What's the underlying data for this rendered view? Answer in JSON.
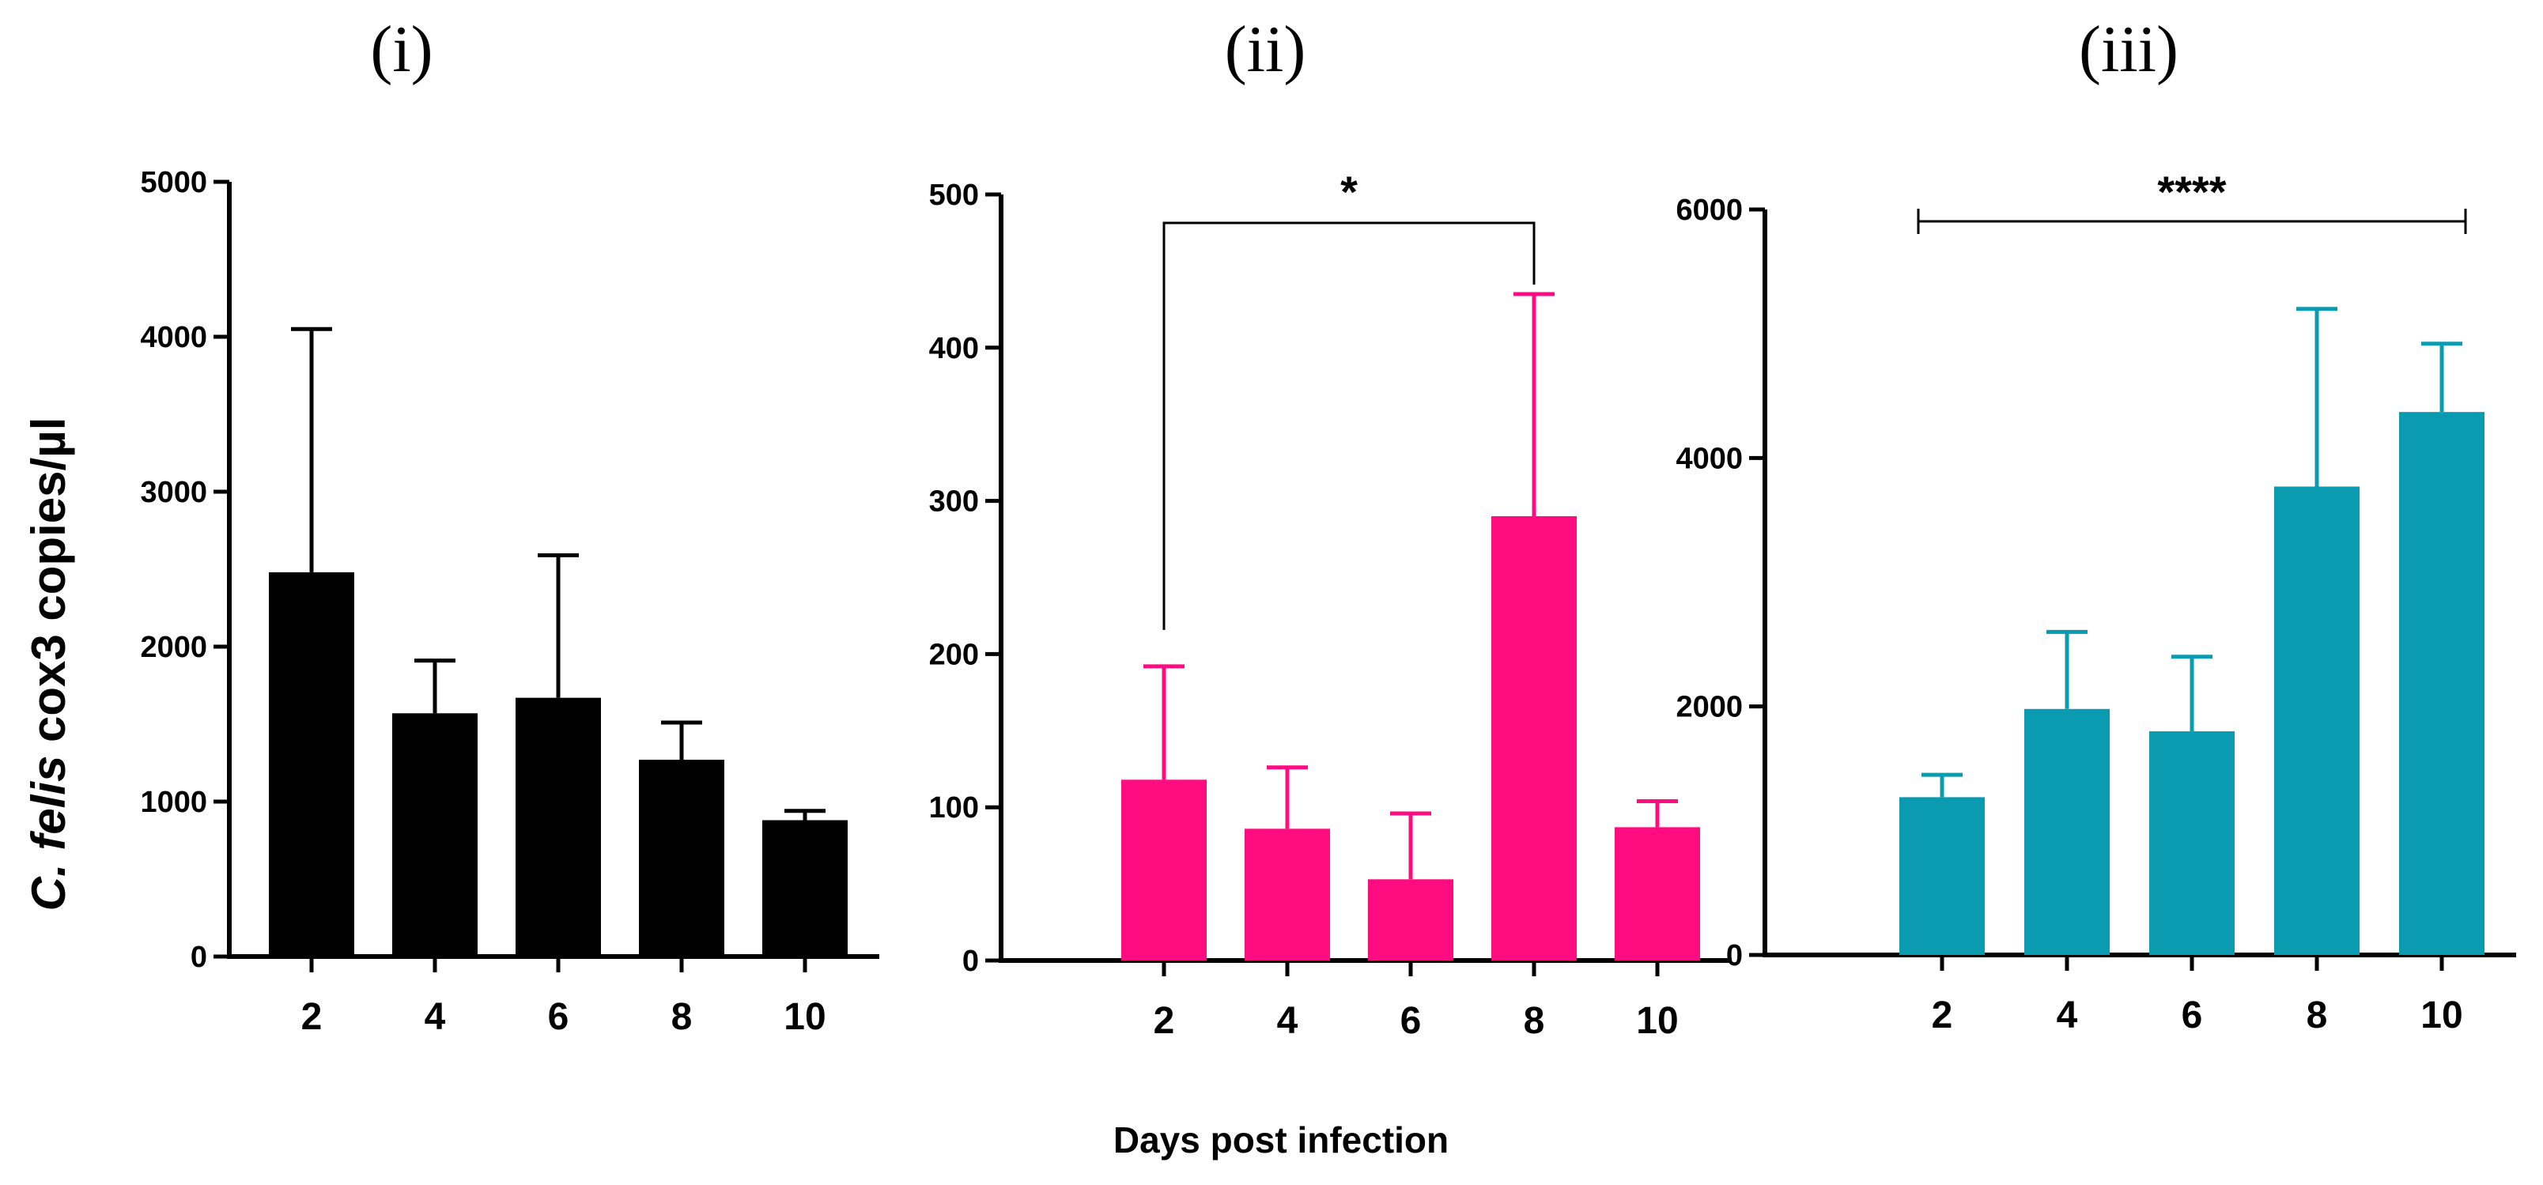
{
  "xlabel": "Days post infection",
  "ylabel": {
    "species_genus": "C.",
    "species_name": "felis",
    "rest": "cox3 copies/µl"
  },
  "chart_data": [
    {
      "type": "bar",
      "panel": "(i)",
      "color": "#000000",
      "categories": [
        "2",
        "4",
        "6",
        "8",
        "10"
      ],
      "values": [
        2480,
        1570,
        1670,
        1270,
        880
      ],
      "error_upper": [
        4050,
        1910,
        2590,
        1510,
        940
      ],
      "ylim": [
        0,
        5000
      ],
      "yticks": [
        0,
        1000,
        2000,
        3000,
        4000,
        5000
      ],
      "significance": null
    },
    {
      "type": "bar",
      "panel": "(ii)",
      "color": "#ff0c80",
      "categories": [
        "2",
        "4",
        "6",
        "8",
        "10"
      ],
      "values": [
        118,
        86,
        53,
        290,
        87
      ],
      "error_upper": [
        192,
        126,
        96,
        435,
        104
      ],
      "ylim": [
        0,
        500
      ],
      "yticks": [
        0,
        100,
        200,
        300,
        400,
        500
      ],
      "significance": {
        "label": "*",
        "from": "2",
        "to": "8",
        "style": "bracket"
      }
    },
    {
      "type": "bar",
      "panel": "(iii)",
      "color": "#0b9bb0",
      "categories": [
        "2",
        "4",
        "6",
        "8",
        "10"
      ],
      "values": [
        1270,
        1980,
        1800,
        3770,
        4370
      ],
      "error_upper": [
        1450,
        2600,
        2400,
        5200,
        4920
      ],
      "ylim": [
        0,
        6000
      ],
      "yticks": [
        0,
        2000,
        4000,
        6000
      ],
      "significance": {
        "label": "****",
        "from": "2",
        "to": "10",
        "style": "line"
      }
    }
  ]
}
